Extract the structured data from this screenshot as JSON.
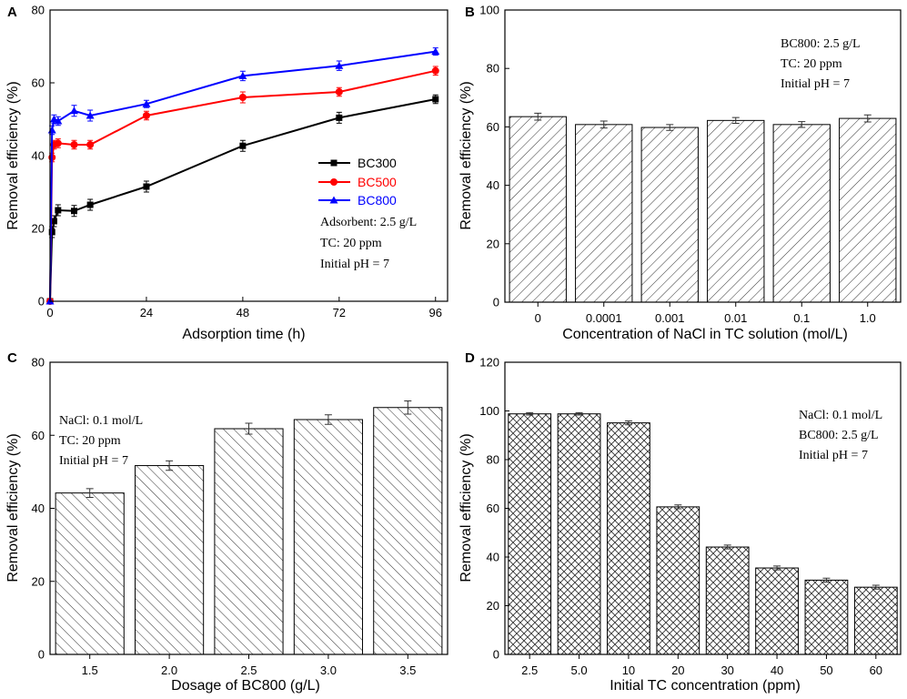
{
  "chart_data": [
    {
      "panel": "A",
      "type": "line",
      "xlabel": "Adsorption time (h)",
      "ylabel": "Removal efficiency (%)",
      "xlim": [
        0,
        99
      ],
      "ylim": [
        0,
        80
      ],
      "xticks": [
        0,
        24,
        48,
        72,
        96
      ],
      "yticks": [
        0,
        20,
        40,
        60,
        80
      ],
      "x": [
        0,
        0.5,
        1,
        2,
        6,
        10,
        24,
        48,
        72,
        96
      ],
      "series": [
        {
          "name": "BC300",
          "color": "#000000",
          "marker": "square",
          "values": [
            0,
            19,
            22,
            25,
            24.8,
            26.5,
            31.5,
            42.7,
            50.4,
            55.5
          ],
          "errors": [
            0,
            1.5,
            1.5,
            1.5,
            1.5,
            1.5,
            1.5,
            1.5,
            1.5,
            1.2
          ]
        },
        {
          "name": "BC500",
          "color": "#ff0000",
          "marker": "circle",
          "values": [
            0,
            39.5,
            43,
            43.4,
            43,
            43,
            51,
            56,
            57.5,
            63.3
          ],
          "errors": [
            0,
            1.2,
            1.2,
            1.2,
            1.2,
            1.2,
            1.2,
            1.5,
            1.2,
            1.2
          ]
        },
        {
          "name": "BC800",
          "color": "#0000ff",
          "marker": "triangle",
          "values": [
            0,
            47,
            50,
            49.5,
            52.3,
            51,
            54.2,
            61.9,
            64.7,
            68.6
          ],
          "errors": [
            0,
            1.2,
            1.2,
            1.2,
            1.5,
            1.5,
            1,
            1.3,
            1.3,
            1
          ]
        }
      ],
      "legend_position": "center-right",
      "annotations": [
        "Adsorbent: 2.5 g/L",
        "TC: 20 ppm",
        "Initial pH = 7"
      ]
    },
    {
      "panel": "B",
      "type": "bar",
      "hatch": "forward",
      "xlabel": "Concentration of NaCl in TC solution (mol/L)",
      "ylabel": "Removal efficiency (%)",
      "ylim": [
        0,
        100
      ],
      "yticks": [
        0,
        20,
        40,
        60,
        80,
        100
      ],
      "categories": [
        "0",
        "0.0001",
        "0.001",
        "0.01",
        "0.1",
        "1.0"
      ],
      "values": [
        63.5,
        60.8,
        59.8,
        62.2,
        60.8,
        62.9
      ],
      "errors": [
        1.2,
        1.2,
        1,
        1,
        1,
        1.2
      ],
      "annotations": [
        "BC800: 2.5 g/L",
        "TC: 20 ppm",
        "Initial pH = 7"
      ]
    },
    {
      "panel": "C",
      "type": "bar",
      "hatch": "backward",
      "xlabel": "Dosage of BC800 (g/L)",
      "ylabel": "Removal efficiency (%)",
      "ylim": [
        0,
        80
      ],
      "yticks": [
        0,
        20,
        40,
        60,
        80
      ],
      "categories": [
        "1.5",
        "2.0",
        "2.5",
        "3.0",
        "3.5"
      ],
      "values": [
        44.2,
        51.7,
        61.8,
        64.3,
        67.6
      ],
      "errors": [
        1.2,
        1.3,
        1.5,
        1.3,
        1.8
      ],
      "annotations": [
        "NaCl: 0.1 mol/L",
        "TC: 20 ppm",
        "Initial pH = 7"
      ]
    },
    {
      "panel": "D",
      "type": "bar",
      "hatch": "cross",
      "xlabel": "Initial TC concentration (ppm)",
      "ylabel": "Removal efficiency (%)",
      "ylim": [
        0,
        120
      ],
      "yticks": [
        0,
        20,
        40,
        60,
        80,
        100,
        120
      ],
      "categories": [
        "2.5",
        "5.0",
        "10",
        "20",
        "30",
        "40",
        "50",
        "60"
      ],
      "values": [
        98.8,
        98.8,
        95.1,
        60.6,
        44.1,
        35.5,
        30.5,
        27.6
      ],
      "errors": [
        0.5,
        0.5,
        0.8,
        0.8,
        0.8,
        0.8,
        0.8,
        0.8
      ],
      "annotations": [
        "NaCl: 0.1 mol/L",
        "BC800: 2.5 g/L",
        "Initial pH = 7"
      ]
    }
  ]
}
